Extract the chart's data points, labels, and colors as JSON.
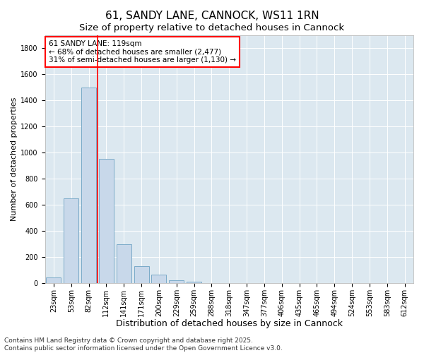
{
  "title": "61, SANDY LANE, CANNOCK, WS11 1RN",
  "subtitle": "Size of property relative to detached houses in Cannock",
  "xlabel": "Distribution of detached houses by size in Cannock",
  "ylabel": "Number of detached properties",
  "categories": [
    "23sqm",
    "53sqm",
    "82sqm",
    "112sqm",
    "141sqm",
    "171sqm",
    "200sqm",
    "229sqm",
    "259sqm",
    "288sqm",
    "318sqm",
    "347sqm",
    "377sqm",
    "406sqm",
    "435sqm",
    "465sqm",
    "494sqm",
    "524sqm",
    "553sqm",
    "583sqm",
    "612sqm"
  ],
  "values": [
    40,
    650,
    1500,
    950,
    295,
    130,
    65,
    22,
    10,
    0,
    0,
    0,
    0,
    0,
    0,
    0,
    0,
    0,
    0,
    0,
    0
  ],
  "bar_color": "#c8d8ea",
  "bar_edge_color": "#7aaac8",
  "ylim": [
    0,
    1900
  ],
  "yticks": [
    0,
    200,
    400,
    600,
    800,
    1000,
    1200,
    1400,
    1600,
    1800
  ],
  "vline_color": "red",
  "vline_pos": 2.5,
  "annotation_text": "61 SANDY LANE: 119sqm\n← 68% of detached houses are smaller (2,477)\n31% of semi-detached houses are larger (1,130) →",
  "annotation_box_edge_color": "red",
  "background_color": "#dce8f0",
  "plot_bg_color": "#dce8f0",
  "footer_text": "Contains HM Land Registry data © Crown copyright and database right 2025.\nContains public sector information licensed under the Open Government Licence v3.0.",
  "title_fontsize": 11,
  "subtitle_fontsize": 9.5,
  "xlabel_fontsize": 9,
  "ylabel_fontsize": 8,
  "tick_fontsize": 7,
  "annotation_fontsize": 7.5,
  "footer_fontsize": 6.5
}
